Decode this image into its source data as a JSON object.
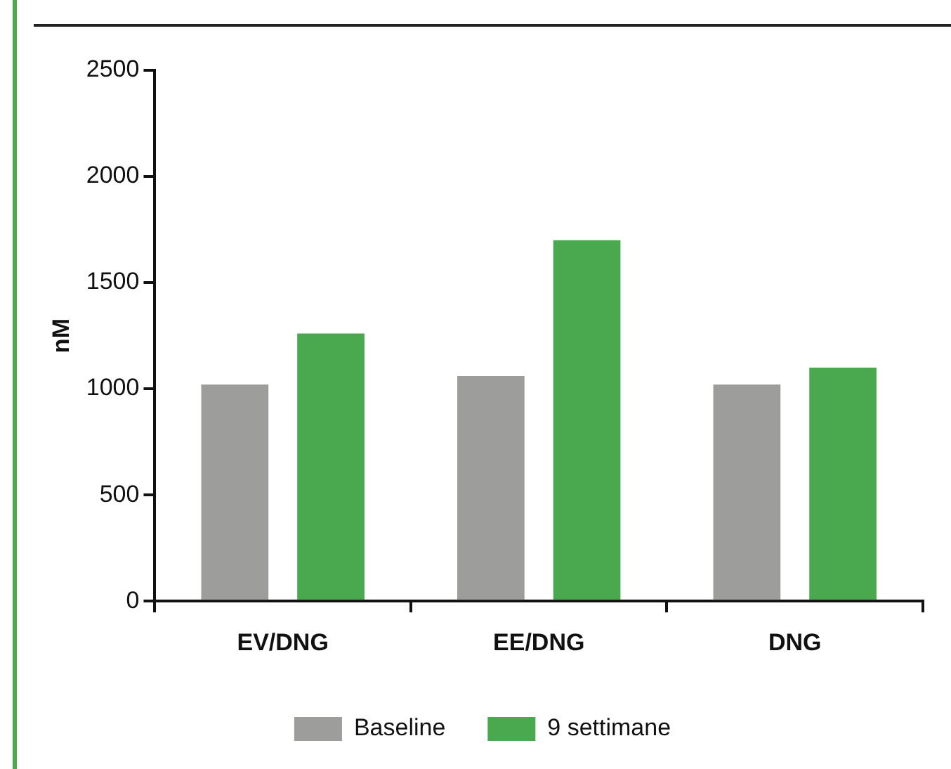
{
  "chart_data": {
    "type": "bar",
    "ylabel": "nM",
    "categories": [
      "EV/DNG",
      "EE/DNG",
      "DNG"
    ],
    "series": [
      {
        "name": "Baseline",
        "color": "#9d9d9b",
        "values": [
          1020,
          1060,
          1020
        ]
      },
      {
        "name": "9 settimane",
        "color": "#4aa84f",
        "values": [
          1260,
          1700,
          1100
        ]
      }
    ],
    "ylim": [
      0,
      2500
    ],
    "yticks": [
      0,
      500,
      1000,
      1500,
      2000,
      2500
    ],
    "grid": false,
    "legend": "bottom"
  }
}
